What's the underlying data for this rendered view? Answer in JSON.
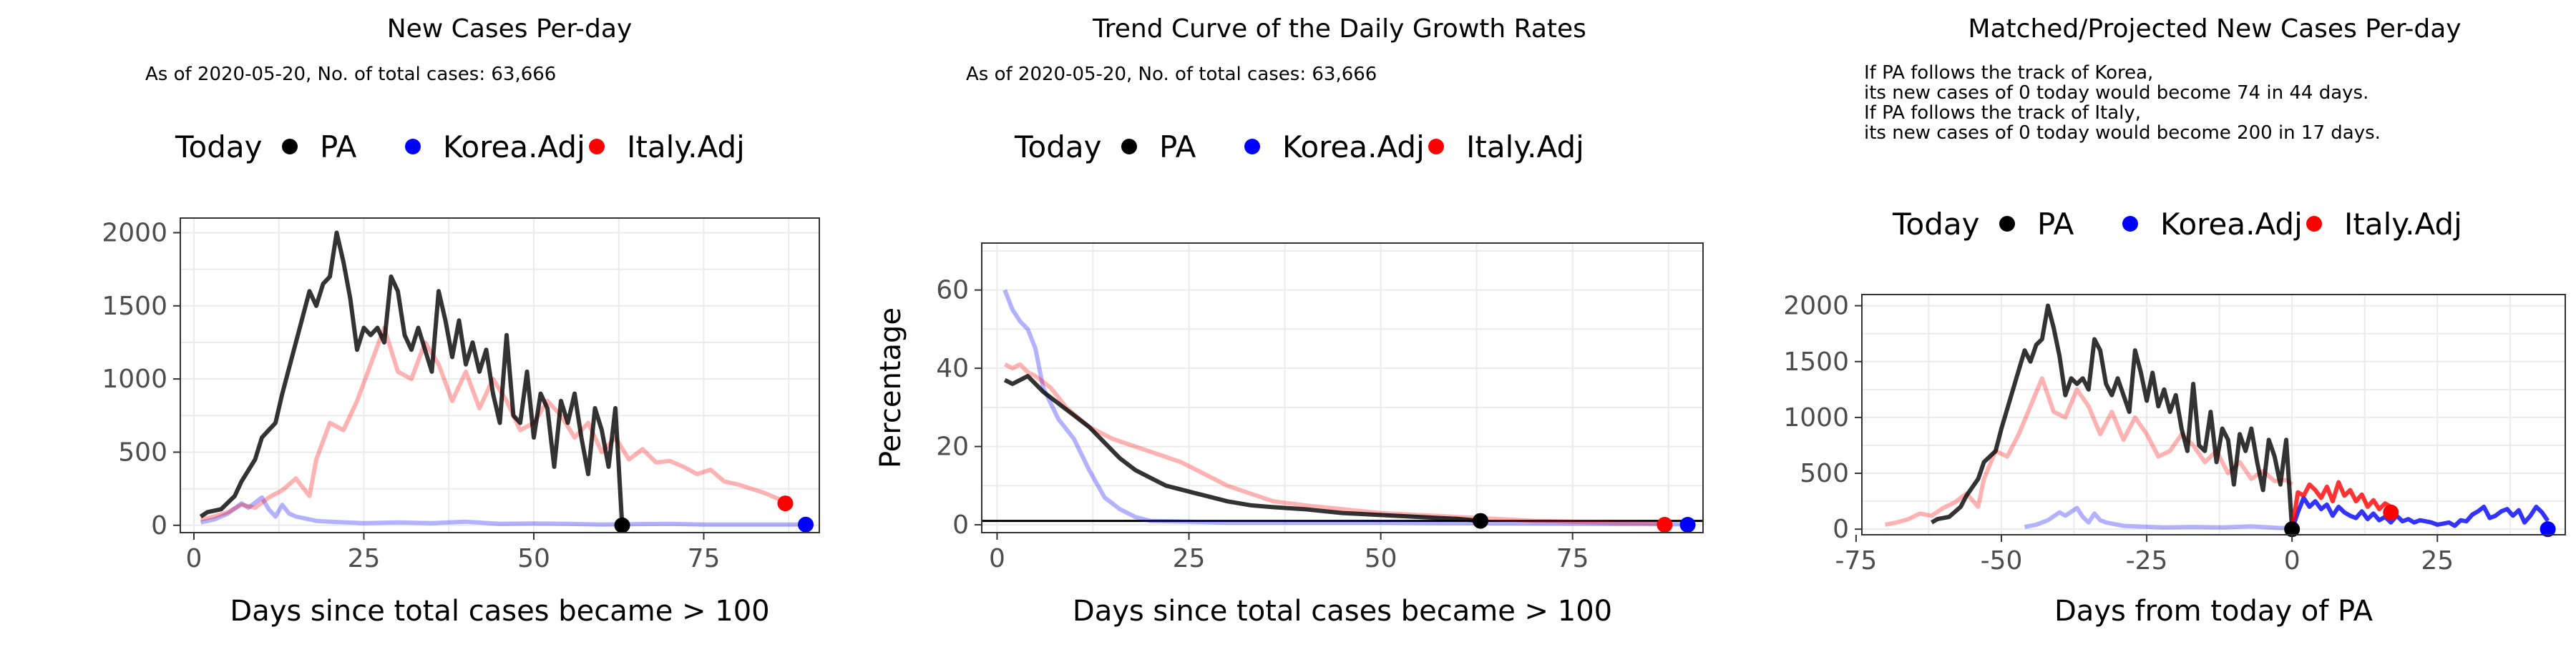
{
  "colors": {
    "PA": "#000000",
    "Korea.Adj": "#0000ff",
    "Italy.Adj": "#ff0000",
    "grid": "#ebebeb",
    "panel_border": "#333333"
  },
  "legend": {
    "title": "Today",
    "entries": [
      "PA",
      "Korea.Adj",
      "Italy.Adj"
    ],
    "placement": "top"
  },
  "chart_data": [
    {
      "type": "line",
      "title": "New Cases Per-day",
      "subtitle": [
        "As of 2020-05-20, No. of total cases: 63,666"
      ],
      "xlabel": "Days since total cases became > 100",
      "ylabel": "",
      "xlim": [
        -2,
        92
      ],
      "ylim": [
        -50,
        2100
      ],
      "xticks": [
        0,
        25,
        50,
        75
      ],
      "yticks": [
        0,
        500,
        1000,
        1500,
        2000
      ],
      "grid": true,
      "series": [
        {
          "name": "Korea.Adj",
          "faded": true,
          "x": [
            1,
            3,
            5,
            7,
            8,
            10,
            11,
            12,
            13,
            14,
            15,
            16,
            18,
            20,
            25,
            30,
            35,
            40,
            45,
            50,
            55,
            60,
            65,
            70,
            75,
            80,
            85,
            89
          ],
          "y": [
            20,
            40,
            80,
            150,
            120,
            190,
            110,
            60,
            140,
            80,
            60,
            50,
            30,
            25,
            15,
            20,
            15,
            25,
            10,
            12,
            10,
            5,
            8,
            10,
            5,
            5,
            5,
            5
          ]
        },
        {
          "name": "Italy.Adj",
          "faded": true,
          "x": [
            1,
            3,
            5,
            7,
            9,
            11,
            13,
            15,
            17,
            18,
            20,
            22,
            24,
            26,
            28,
            30,
            32,
            34,
            36,
            38,
            40,
            42,
            44,
            46,
            48,
            50,
            52,
            54,
            56,
            58,
            60,
            62,
            64,
            66,
            68,
            70,
            72,
            74,
            76,
            78,
            80,
            82,
            84,
            86,
            87
          ],
          "y": [
            40,
            60,
            90,
            140,
            120,
            190,
            240,
            320,
            200,
            450,
            700,
            650,
            850,
            1100,
            1350,
            1050,
            1000,
            1250,
            1100,
            850,
            1050,
            800,
            1000,
            850,
            650,
            700,
            850,
            750,
            600,
            700,
            500,
            600,
            450,
            520,
            430,
            440,
            400,
            350,
            380,
            300,
            280,
            250,
            220,
            180,
            150
          ]
        },
        {
          "name": "PA",
          "faded": false,
          "x": [
            1,
            2,
            4,
            6,
            7,
            9,
            10,
            11,
            12,
            13,
            15,
            17,
            18,
            19,
            20,
            21,
            22,
            23,
            24,
            25,
            26,
            27,
            28,
            29,
            30,
            31,
            32,
            33,
            34,
            35,
            36,
            37,
            38,
            39,
            40,
            41,
            42,
            43,
            44,
            45,
            46,
            47,
            48,
            49,
            50,
            51,
            52,
            53,
            54,
            55,
            56,
            57,
            58,
            59,
            60,
            61,
            62,
            63
          ],
          "y": [
            60,
            90,
            110,
            200,
            300,
            450,
            600,
            650,
            700,
            900,
            1250,
            1600,
            1500,
            1650,
            1700,
            2000,
            1800,
            1550,
            1200,
            1350,
            1300,
            1350,
            1250,
            1700,
            1600,
            1300,
            1200,
            1350,
            1200,
            1050,
            1600,
            1400,
            1150,
            1400,
            1100,
            1250,
            1050,
            1200,
            900,
            700,
            1300,
            750,
            700,
            1050,
            600,
            900,
            800,
            400,
            850,
            700,
            900,
            600,
            350,
            800,
            650,
            400,
            800,
            0
          ]
        }
      ],
      "today_points": [
        {
          "series": "PA",
          "x": 63,
          "y": 0
        },
        {
          "series": "Korea.Adj",
          "x": 90,
          "y": 5
        },
        {
          "series": "Italy.Adj",
          "x": 87,
          "y": 150
        }
      ]
    },
    {
      "type": "line",
      "title": "Trend Curve of the Daily Growth Rates",
      "subtitle": [
        "As of 2020-05-20, No. of total cases: 63,666"
      ],
      "xlabel": "Days since total cases became > 100",
      "ylabel": "Percentage",
      "xlim": [
        -2,
        92
      ],
      "ylim": [
        -2,
        72
      ],
      "xticks": [
        0,
        25,
        50,
        75
      ],
      "yticks": [
        0,
        20,
        40,
        60
      ],
      "grid": true,
      "reference_line_y": 1,
      "series": [
        {
          "name": "Korea.Adj",
          "faded": true,
          "x": [
            1,
            2,
            3,
            4,
            5,
            6,
            8,
            10,
            12,
            14,
            16,
            18,
            20,
            25,
            30,
            40,
            50,
            60,
            70,
            80,
            90
          ],
          "y": [
            60,
            55,
            52,
            50,
            45,
            35,
            27,
            22,
            14,
            7,
            4,
            2,
            1,
            0.8,
            0.5,
            0.5,
            0.5,
            0.4,
            0.3,
            0.2,
            0.1
          ]
        },
        {
          "name": "Italy.Adj",
          "faded": true,
          "x": [
            1,
            2,
            3,
            4,
            5,
            7,
            9,
            12,
            15,
            18,
            21,
            24,
            27,
            30,
            33,
            36,
            40,
            45,
            50,
            55,
            60,
            65,
            70,
            75,
            80,
            87
          ],
          "y": [
            41,
            40,
            41,
            39,
            38,
            35,
            30,
            25,
            22,
            20,
            18,
            16,
            13,
            10,
            8,
            6,
            5,
            4,
            3,
            2.5,
            2,
            1.5,
            1,
            0.8,
            0.5,
            0.3
          ]
        },
        {
          "name": "PA",
          "faded": false,
          "x": [
            1,
            2,
            3,
            4,
            5,
            6,
            8,
            10,
            12,
            14,
            16,
            18,
            20,
            22,
            24,
            26,
            28,
            30,
            33,
            36,
            40,
            45,
            50,
            55,
            60,
            63
          ],
          "y": [
            37,
            36,
            37,
            38,
            36,
            34,
            31,
            28,
            25,
            21,
            17,
            14,
            12,
            10,
            9,
            8,
            7,
            6,
            5,
            4.5,
            4,
            3,
            2.5,
            2,
            1.5,
            1
          ]
        }
      ],
      "today_points": [
        {
          "series": "PA",
          "x": 63,
          "y": 1
        },
        {
          "series": "Korea.Adj",
          "x": 90,
          "y": 0
        },
        {
          "series": "Italy.Adj",
          "x": 87,
          "y": 0
        }
      ]
    },
    {
      "type": "line",
      "title": "Matched/Projected New Cases Per-day",
      "subtitle": [
        "If PA follows the track of Korea,",
        "its new cases of 0 today would become 74 in 44 days.",
        "If PA follows the track of Italy,",
        "its new cases of 0 today would become 200 in 17 days."
      ],
      "xlabel": "Days from today of PA",
      "ylabel": "",
      "xlim": [
        -74,
        47
      ],
      "ylim": [
        -50,
        2100
      ],
      "xticks": [
        -75,
        -50,
        -25,
        0,
        25
      ],
      "yticks": [
        0,
        500,
        1000,
        1500,
        2000
      ],
      "grid": true,
      "series": [
        {
          "name": "Korea.Adj",
          "faded": true,
          "x": [
            -46,
            -44,
            -42,
            -40,
            -39,
            -37,
            -36,
            -35,
            -34,
            -33,
            -32,
            -31,
            -29,
            -27,
            -22,
            -17,
            -12,
            -7,
            -2,
            0
          ],
          "y": [
            20,
            40,
            80,
            150,
            120,
            190,
            110,
            60,
            140,
            80,
            60,
            50,
            30,
            25,
            15,
            20,
            15,
            25,
            10,
            12
          ]
        },
        {
          "name": "Italy.Adj",
          "faded": true,
          "x": [
            -70,
            -68,
            -66,
            -64,
            -62,
            -60,
            -58,
            -56,
            -54,
            -53,
            -51,
            -49,
            -47,
            -45,
            -43,
            -41,
            -39,
            -37,
            -35,
            -33,
            -31,
            -29,
            -27,
            -25,
            -23,
            -21,
            -19,
            -17,
            -15,
            -13,
            -11,
            -9,
            -7,
            -5,
            -3,
            -1,
            0
          ],
          "y": [
            40,
            60,
            90,
            140,
            120,
            190,
            240,
            320,
            200,
            450,
            700,
            650,
            850,
            1100,
            1350,
            1050,
            1000,
            1250,
            1100,
            850,
            1050,
            800,
            1000,
            850,
            650,
            700,
            850,
            750,
            600,
            700,
            500,
            600,
            450,
            520,
            430,
            440,
            400
          ]
        },
        {
          "name": "PA",
          "faded": false,
          "x": [
            -62,
            -61,
            -59,
            -57,
            -56,
            -54,
            -53,
            -52,
            -51,
            -50,
            -48,
            -46,
            -45,
            -44,
            -43,
            -42,
            -41,
            -40,
            -39,
            -38,
            -37,
            -36,
            -35,
            -34,
            -33,
            -32,
            -31,
            -30,
            -29,
            -28,
            -27,
            -26,
            -25,
            -24,
            -23,
            -22,
            -21,
            -20,
            -19,
            -18,
            -17,
            -16,
            -15,
            -14,
            -13,
            -12,
            -11,
            -10,
            -9,
            -8,
            -7,
            -6,
            -5,
            -4,
            -3,
            -2,
            -1,
            0
          ],
          "y": [
            60,
            90,
            110,
            200,
            300,
            450,
            600,
            650,
            700,
            900,
            1250,
            1600,
            1500,
            1650,
            1700,
            2000,
            1800,
            1550,
            1200,
            1350,
            1300,
            1350,
            1250,
            1700,
            1600,
            1300,
            1200,
            1350,
            1200,
            1050,
            1600,
            1400,
            1150,
            1400,
            1100,
            1250,
            1050,
            1200,
            900,
            700,
            1300,
            750,
            700,
            1050,
            600,
            900,
            800,
            400,
            850,
            700,
            900,
            600,
            350,
            800,
            650,
            400,
            800,
            0
          ]
        },
        {
          "name": "Korea.Adj",
          "faded": false,
          "projection": true,
          "x": [
            0,
            1,
            2,
            3,
            4,
            5,
            6,
            7,
            8,
            9,
            10,
            11,
            12,
            13,
            14,
            15,
            16,
            17,
            18,
            19,
            20,
            21,
            22,
            23,
            24,
            25,
            26,
            27,
            28,
            29,
            30,
            31,
            32,
            33,
            34,
            35,
            36,
            37,
            38,
            39,
            40,
            41,
            42,
            43,
            44
          ],
          "y": [
            0,
            150,
            280,
            200,
            250,
            180,
            220,
            120,
            200,
            150,
            120,
            100,
            160,
            90,
            140,
            80,
            110,
            60,
            120,
            70,
            90,
            60,
            80,
            70,
            60,
            40,
            50,
            60,
            30,
            80,
            70,
            130,
            160,
            200,
            100,
            120,
            160,
            180,
            120,
            170,
            60,
            120,
            200,
            150,
            74
          ]
        },
        {
          "name": "Italy.Adj",
          "faded": false,
          "projection": true,
          "x": [
            0,
            1,
            2,
            3,
            4,
            5,
            6,
            7,
            8,
            9,
            10,
            11,
            12,
            13,
            14,
            15,
            16,
            17
          ],
          "y": [
            0,
            330,
            300,
            400,
            350,
            280,
            380,
            250,
            420,
            300,
            350,
            250,
            310,
            200,
            260,
            180,
            230,
            200
          ]
        }
      ],
      "today_points": [
        {
          "series": "PA",
          "x": 0,
          "y": 0
        },
        {
          "series": "Korea.Adj",
          "x": 44,
          "y": 0
        },
        {
          "series": "Italy.Adj",
          "x": 17,
          "y": 150
        }
      ]
    }
  ]
}
